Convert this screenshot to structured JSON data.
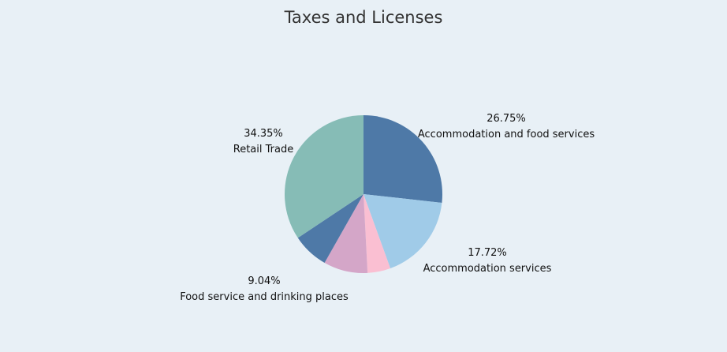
{
  "chart_data": {
    "type": "pie",
    "title": "Taxes and Licenses",
    "slices": [
      {
        "name": "Accommodation and food services",
        "percent": 26.75,
        "label": "26.75%",
        "color": "#4e79a7"
      },
      {
        "name": "Accommodation services",
        "percent": 17.72,
        "label": "17.72%",
        "color": "#a0cbe8"
      },
      {
        "name": "",
        "percent": 4.71,
        "label": "",
        "color": "#fabfd2"
      },
      {
        "name": "Food service and drinking places",
        "percent": 9.04,
        "label": "9.04%",
        "color": "#d4a6c8"
      },
      {
        "name": "",
        "percent": 7.43,
        "label": "",
        "color": "#4e79a7"
      },
      {
        "name": "Retail Trade",
        "percent": 34.35,
        "label": "34.35%",
        "color": "#86bcb6"
      }
    ],
    "start_angle": "top",
    "direction": "clockwise",
    "background": "#e8f0f6"
  }
}
